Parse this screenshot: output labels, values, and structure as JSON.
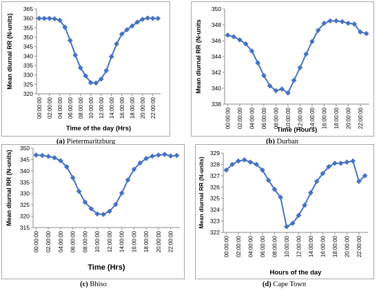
{
  "chart_data": [
    {
      "type": "line",
      "caption_tag": "(a)",
      "caption_name": "Pietermaritzburg",
      "xlabel": "Time of the day (Hrs)",
      "ylabel": "Mean diurnal RR (N-units)",
      "ylim": [
        320,
        365
      ],
      "yticks": [
        320,
        325,
        330,
        335,
        340,
        345,
        350,
        355,
        360,
        365
      ],
      "xtick_labels": [
        "00:00:00",
        "02:00:00",
        "04:00:00",
        "06:00:00",
        "08:00:00",
        "10:00:00",
        "12:00:00",
        "14:00:00",
        "16:00:00",
        "18:00:00",
        "20:00:00",
        "22:00:00"
      ],
      "x": [
        0,
        1,
        2,
        3,
        4,
        5,
        6,
        7,
        8,
        9,
        10,
        11,
        12,
        13,
        14,
        15,
        16,
        17,
        18,
        19,
        20,
        21,
        22,
        23
      ],
      "values": [
        360,
        360,
        360,
        359.8,
        359,
        355.3,
        348.3,
        340.5,
        333.8,
        329.5,
        325.9,
        325.7,
        327.8,
        332.3,
        339.7,
        346.5,
        351.7,
        354,
        356,
        358,
        359.5,
        360.2,
        360,
        360
      ],
      "color": "#4472c4"
    },
    {
      "type": "line",
      "caption_tag": "(b)",
      "caption_name": "Durban",
      "xlabel": "Time (Hours)",
      "ylabel": "Mean diurnal RR (N-units",
      "ylim": [
        338,
        350
      ],
      "yticks": [
        338,
        340,
        342,
        344,
        346,
        348,
        350
      ],
      "xtick_labels": [
        "00:00:00",
        "02:00:00",
        "04:00:00",
        "06:00:00",
        "08:00:00",
        "10:00:00",
        "12:00:00",
        "14:00:00",
        "16:00:00",
        "18:00:00",
        "20:00:00",
        "22:00:00"
      ],
      "x": [
        0,
        1,
        2,
        3,
        4,
        5,
        6,
        7,
        8,
        9,
        10,
        11,
        12,
        13,
        14,
        15,
        16,
        17,
        18,
        19,
        20,
        21,
        22,
        23
      ],
      "values": [
        346.7,
        346.5,
        346.1,
        345.6,
        344.7,
        343.2,
        341.6,
        340.3,
        339.7,
        339.9,
        339.4,
        341,
        342.6,
        344.3,
        345.9,
        347.3,
        348.2,
        348.5,
        348.5,
        348.4,
        348.2,
        348.1,
        347.1,
        346.9
      ],
      "color": "#4472c4"
    },
    {
      "type": "line",
      "caption_tag": "(c)",
      "caption_name": "Bhiso",
      "xlabel": "Time (Hrs)",
      "ylabel": "Mean diurnal RR (N-units)",
      "ylim": [
        315,
        350
      ],
      "yticks": [
        315,
        320,
        325,
        330,
        335,
        340,
        345,
        350
      ],
      "xtick_labels": [
        "00:00:00",
        "02:00:00",
        "04:00:00",
        "06:00:00",
        "08:00:00",
        "10:00:00",
        "12:00:00",
        "14:00:00",
        "16:00:00",
        "18:00:00",
        "20:00:00",
        "22:00:00"
      ],
      "x": [
        0,
        1,
        2,
        3,
        4,
        5,
        6,
        7,
        8,
        9,
        10,
        11,
        12,
        13,
        14,
        15,
        16,
        17,
        18,
        19,
        20,
        21,
        22,
        23
      ],
      "values": [
        347,
        346.8,
        346.4,
        345.8,
        344.5,
        341.8,
        337,
        331,
        326.2,
        323.3,
        321,
        320.8,
        322.2,
        325.2,
        330.2,
        336,
        340.7,
        343.5,
        345.5,
        346.5,
        347,
        347.3,
        346.6,
        346.8
      ],
      "color": "#4472c4"
    },
    {
      "type": "line",
      "caption_tag": "(d)",
      "caption_name": "Cape Town",
      "xlabel": "Hours of the day",
      "ylabel": "Mean diurnal RR (N-units)",
      "ylim": [
        322,
        329
      ],
      "yticks": [
        322,
        323,
        324,
        325,
        326,
        327,
        328,
        329
      ],
      "xtick_labels": [
        "00:00:00",
        "02:00:00",
        "04:00:00",
        "06:00:00",
        "08:00:00",
        "10:00:00",
        "12:00:00",
        "14:00:00",
        "16:00:00",
        "18:00:00",
        "20:00:00",
        "22:00:00"
      ],
      "x": [
        0,
        1,
        2,
        3,
        4,
        5,
        6,
        7,
        8,
        9,
        10,
        11,
        12,
        13,
        14,
        15,
        16,
        17,
        18,
        19,
        20,
        21,
        22,
        23
      ],
      "values": [
        327.5,
        328,
        328.3,
        328.4,
        328.2,
        328,
        327.5,
        326.6,
        325.8,
        325.1,
        322.5,
        322.8,
        323.5,
        324.4,
        325.5,
        326.5,
        327.2,
        327.8,
        328.1,
        328.1,
        328.2,
        328.3,
        326.5,
        327
      ],
      "color": "#4472c4"
    }
  ]
}
